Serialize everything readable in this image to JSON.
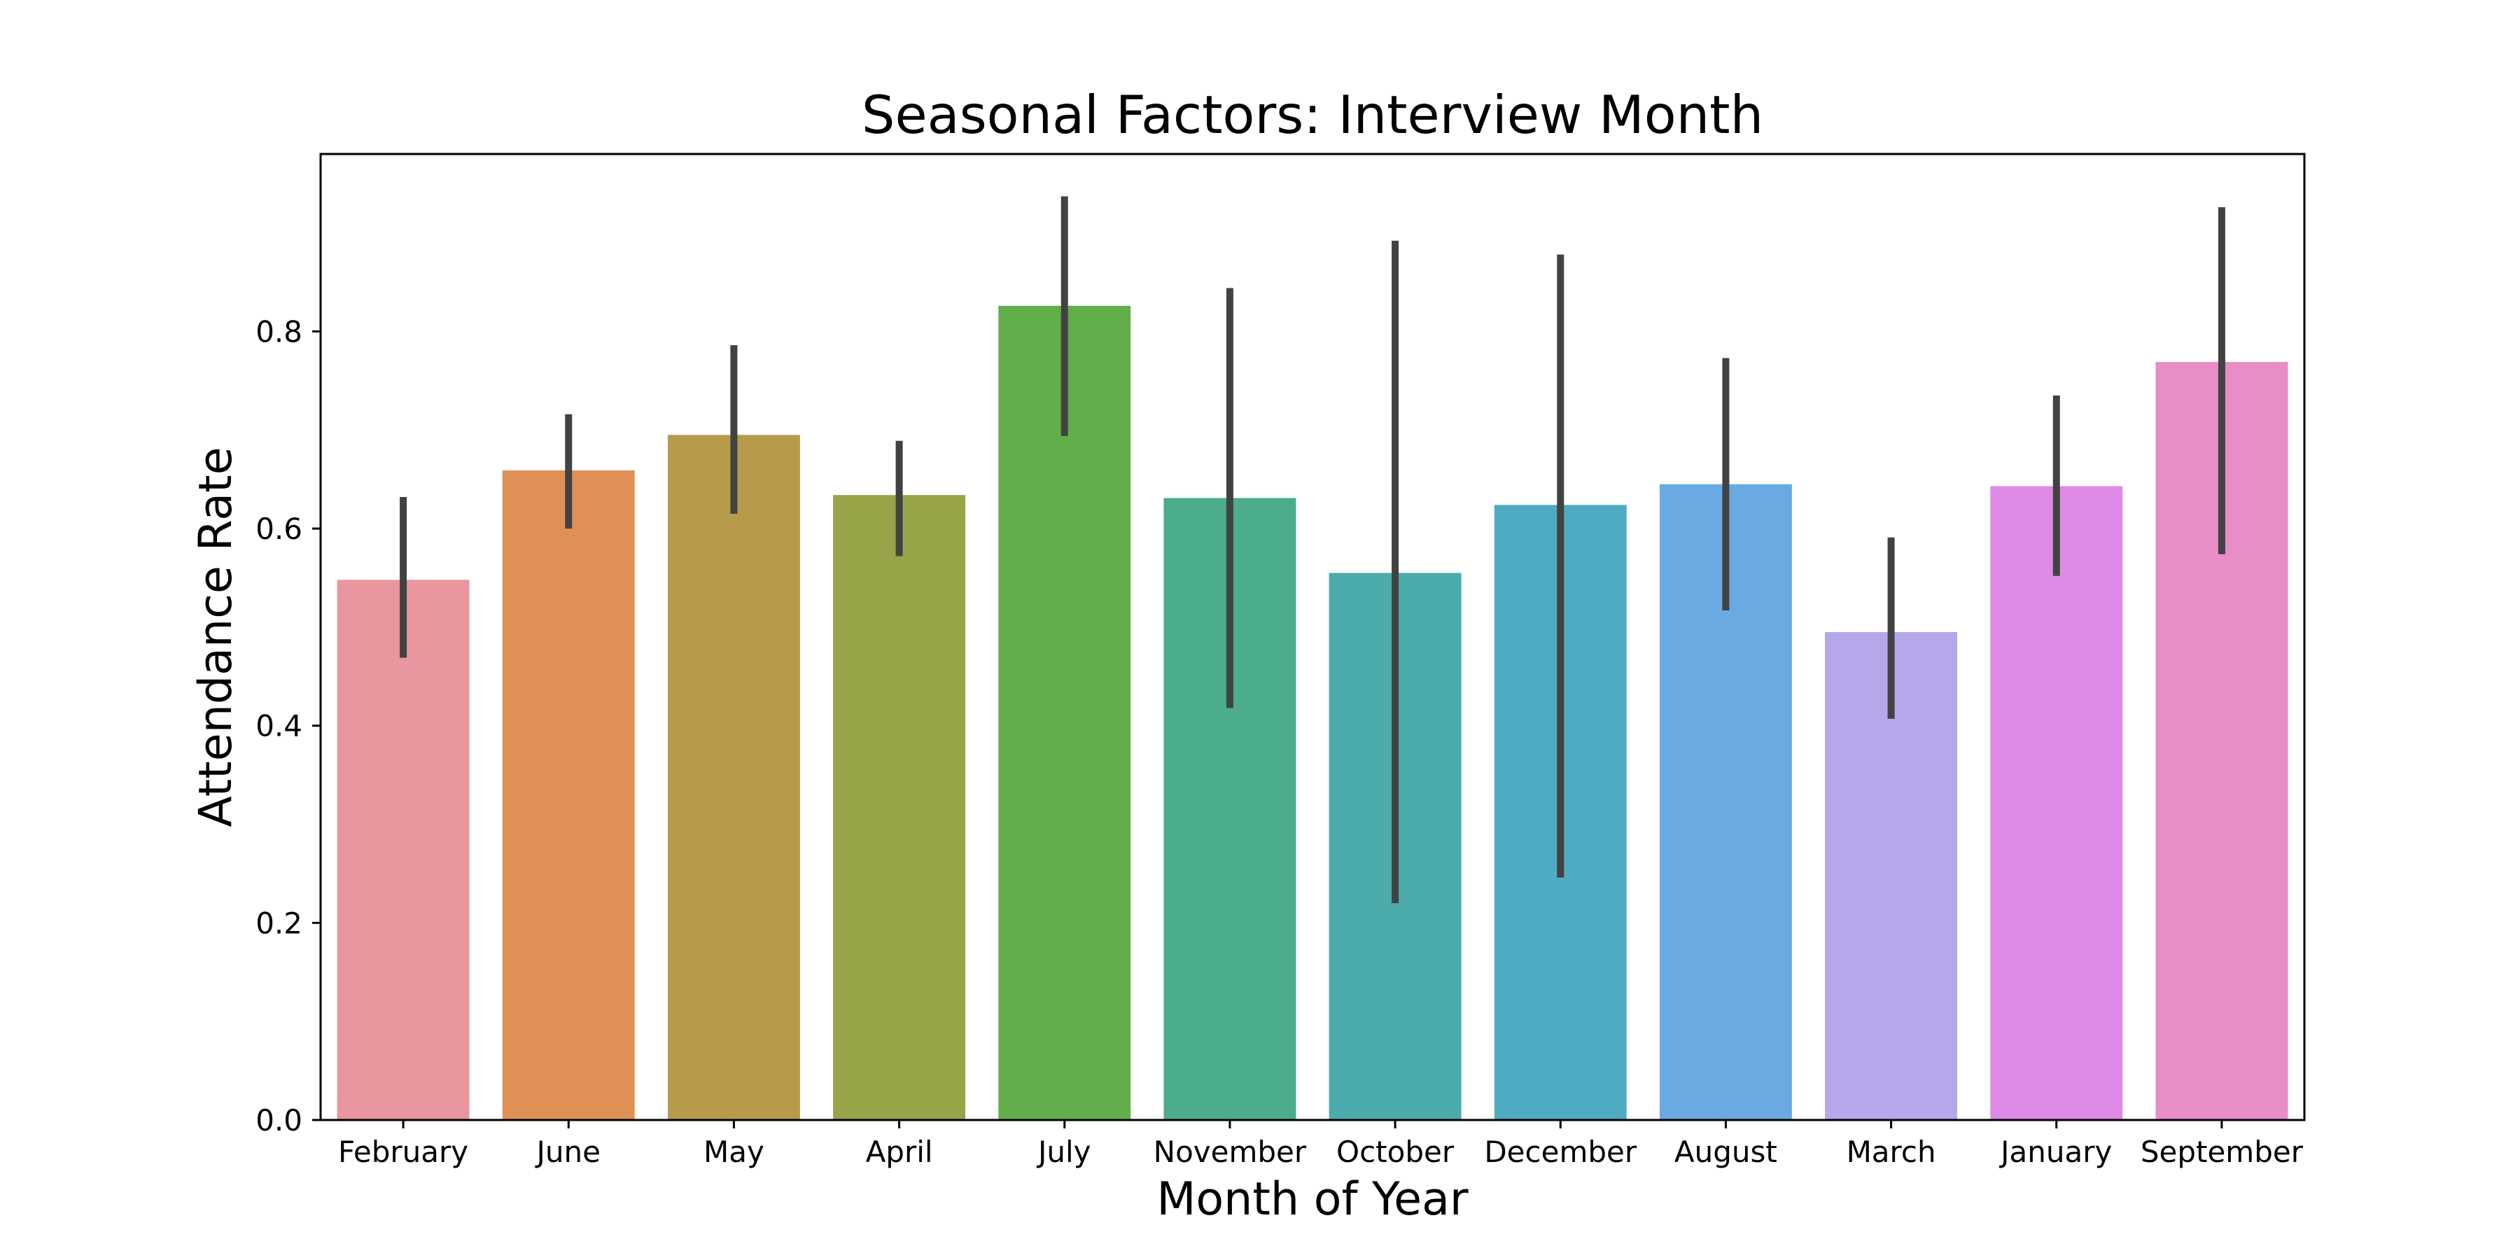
{
  "chart_data": {
    "type": "bar",
    "title": "Seasonal Factors: Interview Month",
    "xlabel": "Month of Year",
    "ylabel": "Attendance Rate",
    "categories": [
      "February",
      "June",
      "May",
      "April",
      "July",
      "November",
      "October",
      "December",
      "August",
      "March",
      "January",
      "September"
    ],
    "values": [
      0.548,
      0.659,
      0.695,
      0.634,
      0.826,
      0.631,
      0.555,
      0.624,
      0.645,
      0.495,
      0.643,
      0.769
    ],
    "error_low": [
      0.469,
      0.6,
      0.615,
      0.572,
      0.694,
      0.418,
      0.22,
      0.246,
      0.517,
      0.407,
      0.552,
      0.574
    ],
    "error_high": [
      0.632,
      0.716,
      0.786,
      0.689,
      0.937,
      0.844,
      0.892,
      0.878,
      0.773,
      0.591,
      0.735,
      0.926
    ],
    "colors": [
      "#e9969f",
      "#df9055",
      "#b79b4b",
      "#98a448",
      "#62ae4a",
      "#4bad89",
      "#4babaa",
      "#4fabc2",
      "#6aaae2",
      "#b6a6ea",
      "#de8ae6",
      "#e88dc6"
    ],
    "error_color": "#424242",
    "ylim": [
      0,
      0.98
    ],
    "yticks": [
      0.0,
      0.2,
      0.4,
      0.6,
      0.8
    ],
    "ytick_labels": [
      "0.0",
      "0.2",
      "0.4",
      "0.6",
      "0.8"
    ],
    "grid": false,
    "legend": "none"
  }
}
